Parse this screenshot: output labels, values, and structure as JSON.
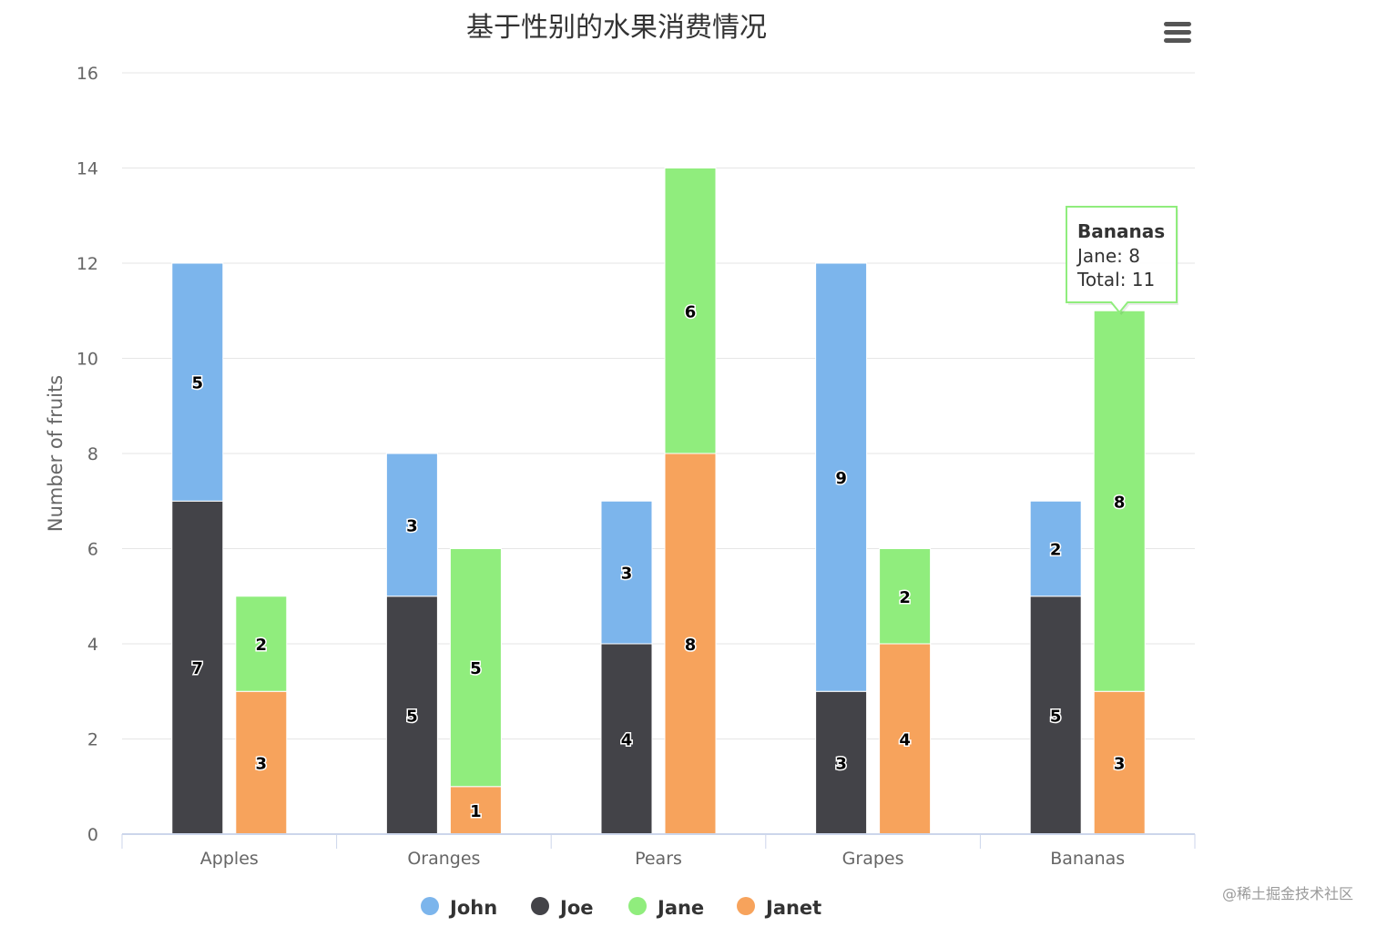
{
  "chart_data": {
    "type": "bar",
    "stacked": true,
    "title": "基于性别的水果消费情况",
    "categories": [
      "Apples",
      "Oranges",
      "Pears",
      "Grapes",
      "Bananas"
    ],
    "ylabel": "Number of fruits",
    "ylim": [
      0,
      16
    ],
    "yticks": [
      0,
      2,
      4,
      6,
      8,
      10,
      12,
      14,
      16
    ],
    "grid": true,
    "legend_position": "bottom",
    "stacks": [
      {
        "stack": "male",
        "series": [
          {
            "name": "John",
            "color": "#7cb5ec",
            "values": [
              5,
              3,
              3,
              9,
              2
            ]
          },
          {
            "name": "Joe",
            "color": "#434348",
            "values": [
              7,
              5,
              4,
              3,
              5
            ]
          }
        ]
      },
      {
        "stack": "female",
        "series": [
          {
            "name": "Jane",
            "color": "#90ed7d",
            "values": [
              2,
              5,
              6,
              2,
              8
            ]
          },
          {
            "name": "Janet",
            "color": "#f7a35c",
            "values": [
              3,
              1,
              8,
              4,
              3
            ]
          }
        ]
      }
    ],
    "legend": [
      "John",
      "Joe",
      "Jane",
      "Janet"
    ],
    "tooltip": {
      "category": "Bananas",
      "series_line": "Jane: 8",
      "total_line": "Total: 11",
      "border_color": "#90ed7d"
    }
  },
  "menu": {
    "icon": "hamburger-menu-icon"
  },
  "watermark": "@稀土掘金技术社区"
}
